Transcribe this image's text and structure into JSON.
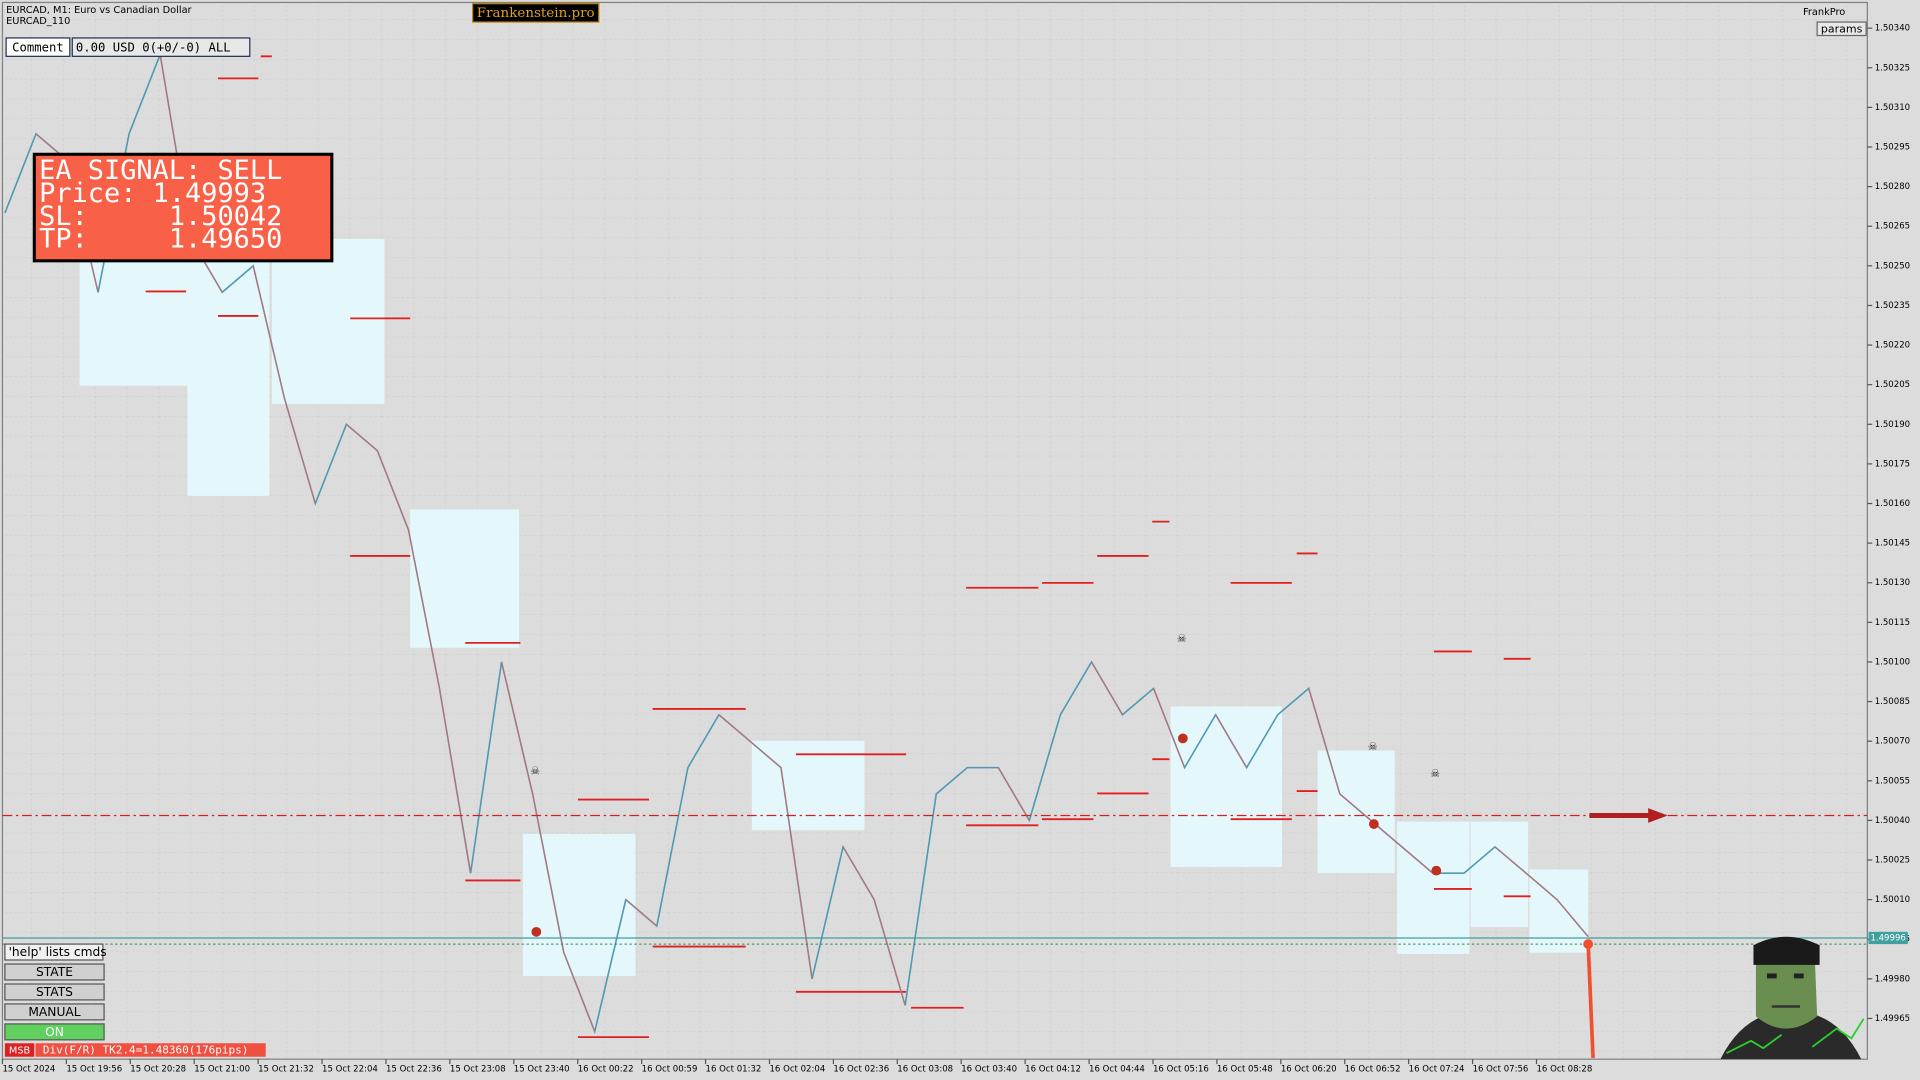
{
  "header": {
    "symbol": "EURCAD, M1:  Euro vs Canadian Dollar",
    "template": "EURCAD_110",
    "brand": "Frankenstein.pro",
    "account": "FrankPro",
    "params": "params"
  },
  "comment_bar": {
    "label": "Comment",
    "value": "0.00 USD 0(+0/-0) ALL"
  },
  "signal": {
    "title": "EA SIGNAL: SELL",
    "lines": [
      "Price: 1.49993",
      "SL:     1.50042",
      "TP:     1.49650"
    ]
  },
  "price_axis": {
    "ticks": [
      "1.50340",
      "1.50325",
      "1.50310",
      "1.50295",
      "1.50280",
      "1.50265",
      "1.50250",
      "1.50235",
      "1.50220",
      "1.50205",
      "1.50190",
      "1.50175",
      "1.50160",
      "1.50145",
      "1.50130",
      "1.50115",
      "1.50100",
      "1.50085",
      "1.50070",
      "1.50055",
      "1.50040",
      "1.50025",
      "1.50010",
      "1.49995",
      "1.49980",
      "1.49965"
    ],
    "current": "1.49996"
  },
  "time_axis": {
    "labels": [
      "15 Oct 2024",
      "15 Oct 19:56",
      "15 Oct 20:28",
      "15 Oct 21:00",
      "15 Oct 21:32",
      "15 Oct 22:04",
      "15 Oct 22:36",
      "15 Oct 23:08",
      "15 Oct 23:40",
      "16 Oct 00:22",
      "16 Oct 00:59",
      "16 Oct 01:32",
      "16 Oct 02:04",
      "16 Oct 02:36",
      "16 Oct 03:08",
      "16 Oct 03:40",
      "16 Oct 04:12",
      "16 Oct 04:44",
      "16 Oct 05:16",
      "16 Oct 05:48",
      "16 Oct 06:20",
      "16 Oct 06:52",
      "16 Oct 07:24",
      "16 Oct 07:56",
      "16 Oct 08:28"
    ]
  },
  "price_line": {
    "values": [
      1.5027,
      1.503,
      1.5029,
      1.5024,
      1.503,
      1.5033,
      1.5026,
      1.5024,
      1.5025,
      1.502,
      1.5016,
      1.5019,
      1.5018,
      1.5015,
      1.5009,
      1.5002,
      1.501,
      1.5005,
      1.4999,
      1.4996,
      1.5001,
      1.5,
      1.5006,
      1.5008,
      1.5007,
      1.5006,
      1.4998,
      1.5003,
      1.5001,
      1.4997,
      1.5005,
      1.5006,
      1.5006,
      1.5004,
      1.5008,
      1.501,
      1.5008,
      1.5009,
      1.5006,
      1.5008,
      1.5006,
      1.5008,
      1.5009,
      1.5005,
      1.5004,
      1.5003,
      1.5002,
      1.5002,
      1.5003,
      1.5002,
      1.5001,
      1.49996
    ]
  },
  "buttons": [
    "'help' lists cmds",
    "STATE",
    "STATS",
    "MANUAL",
    "ON"
  ],
  "status": {
    "tag": "MSB",
    "text": "Div(F/R) TK2.4=1.48360(176pips)"
  }
}
